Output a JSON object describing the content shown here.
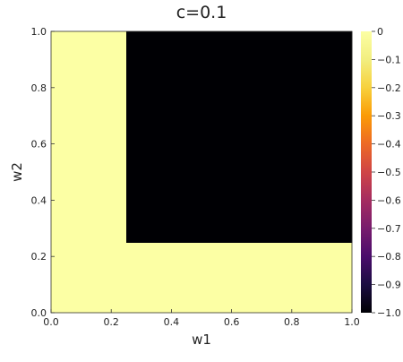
{
  "chart_data": {
    "type": "heatmap",
    "title": "c=0.1",
    "xlabel": "w1",
    "ylabel": "w2",
    "xlim": [
      0,
      1
    ],
    "ylim": [
      0,
      1
    ],
    "x_ticks": [
      "0.0",
      "0.2",
      "0.4",
      "0.6",
      "0.8",
      "1.0"
    ],
    "y_ticks": [
      "0.0",
      "0.2",
      "0.4",
      "0.6",
      "0.8",
      "1.0"
    ],
    "x_tick_values": [
      0,
      0.2,
      0.4,
      0.6,
      0.8,
      1.0
    ],
    "y_tick_values": [
      0,
      0.2,
      0.4,
      0.6,
      0.8,
      1.0
    ],
    "grid_x_edges": [
      0,
      0.25,
      1.0
    ],
    "grid_y_edges": [
      0,
      0.25,
      1.0
    ],
    "z": [
      [
        0,
        0
      ],
      [
        0,
        -1
      ]
    ],
    "colorbar": {
      "colormap": "inferno",
      "range": [
        -1.0,
        0
      ],
      "ticks": [
        "0",
        "−0.1",
        "−0.2",
        "−0.3",
        "−0.4",
        "−0.5",
        "−0.6",
        "−0.7",
        "−0.8",
        "−0.9",
        "−1.0"
      ],
      "tick_values": [
        0,
        -0.1,
        -0.2,
        -0.3,
        -0.4,
        -0.5,
        -0.6,
        -0.7,
        -0.8,
        -0.9,
        -1.0
      ]
    },
    "grid": false,
    "legend": "none"
  }
}
